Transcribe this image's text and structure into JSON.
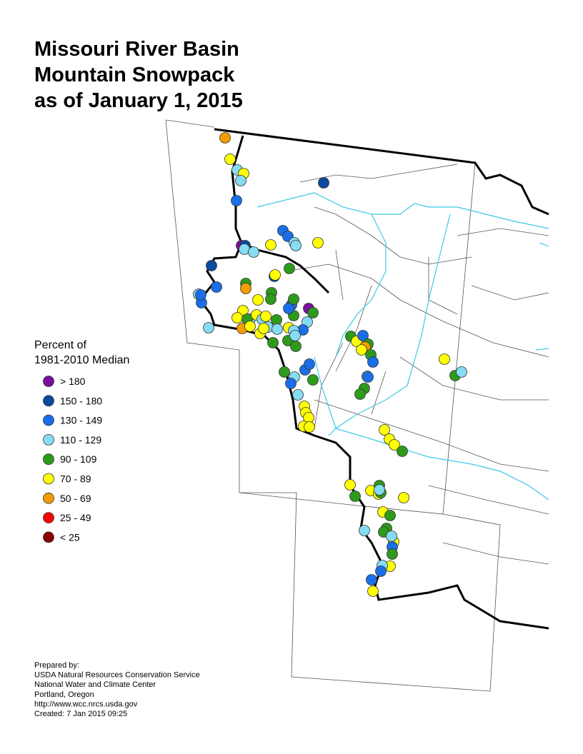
{
  "title": [
    "Missouri River Basin",
    "Mountain Snowpack",
    "as of January 1, 2015"
  ],
  "legend": {
    "title": [
      "Percent of",
      "1981-2010 Median"
    ],
    "classes": [
      {
        "label": "> 180",
        "color": "#7a0fa0"
      },
      {
        "label": "150 - 180",
        "color": "#0b4a9e"
      },
      {
        "label": "130 - 149",
        "color": "#1a6fe8"
      },
      {
        "label": "110 - 129",
        "color": "#86dcf2"
      },
      {
        "label": "90 - 109",
        "color": "#2e9a1c"
      },
      {
        "label": "70 - 89",
        "color": "#ffff00"
      },
      {
        "label": "50 - 69",
        "color": "#f29c00"
      },
      {
        "label": "25 - 49",
        "color": "#ff0000"
      },
      {
        "label": "< 25",
        "color": "#8b0000"
      }
    ]
  },
  "credits": [
    "Prepared by:",
    "USDA Natural Resources Conservation Service",
    "National Water and Climate Center",
    "Portland, Oregon",
    "http://www.wcc.nrcs.usda.gov",
    "Created:   7 Jan 2015   09:25"
  ]
}
